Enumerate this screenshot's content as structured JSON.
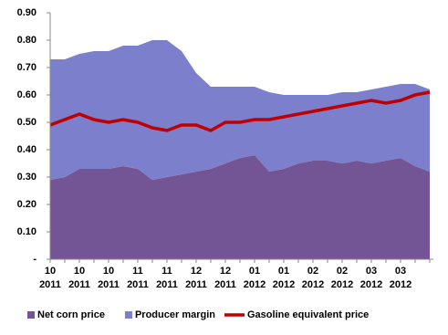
{
  "chart_data": {
    "type": "stacked-area-line",
    "categories": [
      "10\n2011",
      null,
      "10\n2011",
      null,
      "10\n2011",
      null,
      "11\n2011",
      null,
      "11\n2011",
      null,
      "12\n2011",
      null,
      "12\n2011",
      null,
      "01\n2012",
      null,
      "01\n2012",
      null,
      "02\n2012",
      null,
      "02\n2012",
      null,
      "03\n2012",
      null,
      "03\n2012",
      null,
      null
    ],
    "series": [
      {
        "name": "Net corn price",
        "color": "#735595",
        "kind": "area",
        "values": [
          0.29,
          0.3,
          0.33,
          0.33,
          0.33,
          0.34,
          0.33,
          0.29,
          0.3,
          0.31,
          0.32,
          0.33,
          0.35,
          0.37,
          0.38,
          0.32,
          0.33,
          0.35,
          0.36,
          0.36,
          0.35,
          0.36,
          0.35,
          0.36,
          0.37,
          0.34,
          0.32
        ]
      },
      {
        "name": "Producer margin",
        "color": "#7b7fcc",
        "kind": "area",
        "values": [
          0.44,
          0.43,
          0.42,
          0.43,
          0.43,
          0.44,
          0.45,
          0.51,
          0.5,
          0.45,
          0.36,
          0.3,
          0.28,
          0.26,
          0.25,
          0.29,
          0.27,
          0.25,
          0.24,
          0.24,
          0.26,
          0.25,
          0.27,
          0.27,
          0.27,
          0.3,
          0.3
        ]
      },
      {
        "name": "Gasoline equivalent price",
        "color": "#c00000",
        "kind": "line",
        "values": [
          0.49,
          0.51,
          0.53,
          0.51,
          0.5,
          0.51,
          0.5,
          0.48,
          0.47,
          0.49,
          0.49,
          0.47,
          0.5,
          0.5,
          0.51,
          0.51,
          0.52,
          0.53,
          0.54,
          0.55,
          0.56,
          0.57,
          0.58,
          0.57,
          0.58,
          0.6,
          0.61
        ]
      }
    ],
    "ylim": [
      0,
      0.9
    ],
    "yticks": [
      {
        "value": 0,
        "label": "-"
      },
      {
        "value": 0.1,
        "label": "0.10"
      },
      {
        "value": 0.2,
        "label": "0.20"
      },
      {
        "value": 0.3,
        "label": "0.30"
      },
      {
        "value": 0.4,
        "label": "0.40"
      },
      {
        "value": 0.5,
        "label": "0.50"
      },
      {
        "value": 0.6,
        "label": "0.60"
      },
      {
        "value": 0.7,
        "label": "0.70"
      },
      {
        "value": 0.8,
        "label": "0.80"
      },
      {
        "value": 0.9,
        "label": "0.90"
      }
    ],
    "legend": "bottom"
  }
}
